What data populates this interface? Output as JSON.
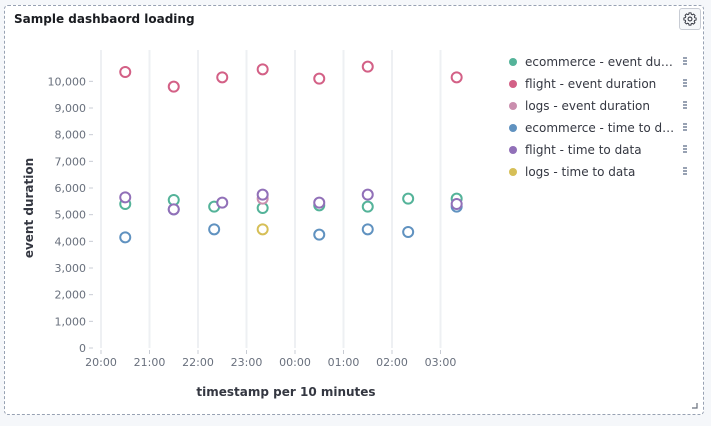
{
  "panel": {
    "title": "Sample dashbaord loading",
    "settings_icon": "gear-icon",
    "resize_icon": "resize-corner-icon"
  },
  "chart_data": {
    "type": "scatter",
    "xlabel": "timestamp per 10 minutes",
    "ylabel": "event duration",
    "x_ticks": [
      "20:00",
      "21:00",
      "22:00",
      "23:00",
      "00:00",
      "01:00",
      "02:00",
      "03:00"
    ],
    "y_ticks": [
      "0",
      "1,000",
      "2,000",
      "3,000",
      "4,000",
      "5,000",
      "6,000",
      "7,000",
      "8,000",
      "9,000",
      "10,000"
    ],
    "ylim": [
      0,
      10800
    ],
    "grid": "vertical",
    "legend_position": "right",
    "series": [
      {
        "name": "ecommerce - event duration",
        "color": "#54b399",
        "points": [
          [
            "20:30",
            5400
          ],
          [
            "21:30",
            5550
          ],
          [
            "22:20",
            5300
          ],
          [
            "23:20",
            5250
          ],
          [
            "00:30",
            5350
          ],
          [
            "01:30",
            5300
          ],
          [
            "02:20",
            5600
          ],
          [
            "03:20",
            5600
          ]
        ]
      },
      {
        "name": "flight - event duration",
        "color": "#d36086",
        "points": [
          [
            "20:30",
            10350
          ],
          [
            "21:30",
            9800
          ],
          [
            "22:30",
            10150
          ],
          [
            "23:20",
            10450
          ],
          [
            "00:30",
            10100
          ],
          [
            "01:30",
            10550
          ],
          [
            "03:20",
            10150
          ]
        ]
      },
      {
        "name": "logs - event duration",
        "color": "#ca8eae",
        "points": [
          [
            "23:20",
            5600
          ]
        ]
      },
      {
        "name": "ecommerce - time to data",
        "color": "#6092c0",
        "points": [
          [
            "20:30",
            4150
          ],
          [
            "21:30",
            5200
          ],
          [
            "22:20",
            4450
          ],
          [
            "00:30",
            4250
          ],
          [
            "01:30",
            4450
          ],
          [
            "02:20",
            4350
          ],
          [
            "03:20",
            5300
          ]
        ]
      },
      {
        "name": "flight - time to data",
        "color": "#9170b8",
        "points": [
          [
            "20:30",
            5650
          ],
          [
            "21:30",
            5200
          ],
          [
            "22:30",
            5450
          ],
          [
            "23:20",
            5750
          ],
          [
            "00:30",
            5450
          ],
          [
            "01:30",
            5750
          ],
          [
            "03:20",
            5400
          ]
        ]
      },
      {
        "name": "logs - time to data",
        "color": "#d6bf57",
        "points": [
          [
            "23:20",
            4450
          ]
        ]
      }
    ]
  },
  "legend": {
    "items": [
      {
        "label": "ecommerce - event dura...",
        "color": "#54b399"
      },
      {
        "label": "flight - event duration",
        "color": "#d36086"
      },
      {
        "label": "logs - event duration",
        "color": "#ca8eae"
      },
      {
        "label": "ecommerce - time to data",
        "color": "#6092c0"
      },
      {
        "label": "flight - time to data",
        "color": "#9170b8"
      },
      {
        "label": "logs - time to data",
        "color": "#d6bf57"
      }
    ]
  }
}
